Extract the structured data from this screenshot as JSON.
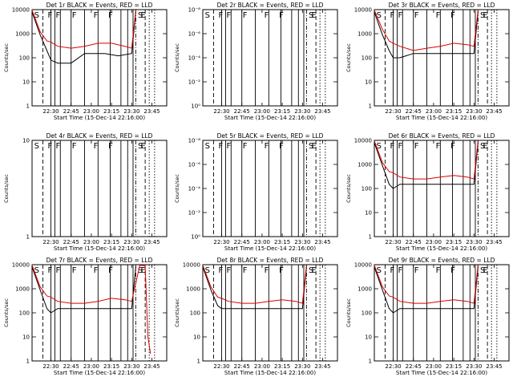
{
  "chart_data": [
    {
      "type": "line",
      "title": "Det 1r BLACK = Events, RED = LLD",
      "xlabel": "Start Time (15-Dec-14 22:16:00)",
      "ylabel": "Counts/sec",
      "yscale": "log",
      "ytick_labels": [
        "1",
        "10",
        "100",
        "1000",
        "10000"
      ],
      "xtick_labels": [
        "22:30",
        "22:45",
        "23:00",
        "23:15",
        "23:30",
        "23:45"
      ],
      "xlim": [
        "22:16",
        "23:56"
      ],
      "series": [
        {
          "name": "Events",
          "color": "#000000",
          "x": [
            "22:16",
            "22:22",
            "22:27",
            "22:30",
            "22:35",
            "22:45",
            "22:55",
            "23:00",
            "23:10",
            "23:20",
            "23:30",
            "23:33"
          ],
          "y": [
            8000,
            900,
            200,
            80,
            60,
            60,
            150,
            150,
            150,
            120,
            150,
            8000
          ]
        },
        {
          "name": "LLD",
          "color": "#dd0000",
          "x": [
            "22:16",
            "22:22",
            "22:27",
            "22:30",
            "22:35",
            "22:45",
            "22:55",
            "23:05",
            "23:15",
            "23:25",
            "23:30",
            "23:33"
          ],
          "y": [
            9500,
            1200,
            500,
            450,
            300,
            250,
            300,
            400,
            400,
            300,
            250,
            9500
          ]
        }
      ]
    },
    {
      "type": "line",
      "title": "Det 2r BLACK = Events, RED = LLD",
      "xlabel": "Start Time (15-Dec-14 22:16:00)",
      "ylabel": "Counts/sec",
      "yscale": "log",
      "ytick_labels": [
        "10⁰",
        "10⁻²",
        "10⁻⁴",
        "10⁻⁶",
        "10⁻⁸"
      ],
      "xtick_labels": [
        "22:30",
        "22:45",
        "23:00",
        "23:15",
        "23:30",
        "23:45"
      ],
      "xlim": [
        "22:16",
        "23:56"
      ],
      "series": []
    },
    {
      "type": "line",
      "title": "Det 3r BLACK = Events, RED = LLD",
      "xlabel": "Start Time (15-Dec-14 22:16:00)",
      "ylabel": "Counts/sec",
      "yscale": "log",
      "ytick_labels": [
        "1",
        "10",
        "100",
        "1000",
        "10000"
      ],
      "xtick_labels": [
        "22:30",
        "22:45",
        "23:00",
        "23:15",
        "23:30",
        "23:45"
      ],
      "xlim": [
        "22:16",
        "23:56"
      ],
      "series": [
        {
          "name": "Events",
          "color": "#000000",
          "x": [
            "22:16",
            "22:22",
            "22:27",
            "22:30",
            "22:35",
            "22:45",
            "22:55",
            "23:00",
            "23:10",
            "23:20",
            "23:30",
            "23:33"
          ],
          "y": [
            8000,
            900,
            200,
            100,
            100,
            150,
            150,
            150,
            150,
            150,
            150,
            8000
          ]
        },
        {
          "name": "LLD",
          "color": "#dd0000",
          "x": [
            "22:16",
            "22:22",
            "22:27",
            "22:30",
            "22:35",
            "22:45",
            "22:55",
            "23:05",
            "23:15",
            "23:25",
            "23:30",
            "23:33"
          ],
          "y": [
            9500,
            1500,
            500,
            400,
            300,
            200,
            250,
            300,
            400,
            350,
            300,
            9500
          ]
        }
      ]
    },
    {
      "type": "line",
      "title": "Det 4r BLACK = Events, RED = LLD",
      "xlabel": "Start Time (15-Dec-14 22:16:00)",
      "ylabel": "Counts/sec",
      "yscale": "log",
      "ytick_labels": [
        "1",
        "10"
      ],
      "xtick_labels": [
        "22:30",
        "22:45",
        "23:00",
        "23:15",
        "23:30",
        "23:45"
      ],
      "xlim": [
        "22:16",
        "23:56"
      ],
      "series": []
    },
    {
      "type": "line",
      "title": "Det 5r BLACK = Events, RED = LLD",
      "xlabel": "Start Time (15-Dec-14 22:16:00)",
      "ylabel": "Counts/sec",
      "yscale": "log",
      "ytick_labels": [
        "10⁰",
        "10⁻²",
        "10⁻⁴",
        "10⁻⁶",
        "10⁻⁸"
      ],
      "xtick_labels": [
        "22:30",
        "22:45",
        "23:00",
        "23:15",
        "23:30",
        "23:45"
      ],
      "xlim": [
        "22:16",
        "23:56"
      ],
      "series": []
    },
    {
      "type": "line",
      "title": "Det 6r BLACK = Events, RED = LLD",
      "xlabel": "Start Time (15-Dec-14 22:16:00)",
      "ylabel": "Counts/sec",
      "yscale": "log",
      "ytick_labels": [
        "1",
        "10",
        "100",
        "1000",
        "10000"
      ],
      "xtick_labels": [
        "22:30",
        "22:45",
        "23:00",
        "23:15",
        "23:30",
        "23:45"
      ],
      "xlim": [
        "22:16",
        "23:56"
      ],
      "series": [
        {
          "name": "Events",
          "color": "#000000",
          "x": [
            "22:16",
            "22:22",
            "22:27",
            "22:30",
            "22:35",
            "22:45",
            "22:55",
            "23:00",
            "23:10",
            "23:20",
            "23:30",
            "23:33"
          ],
          "y": [
            8000,
            900,
            150,
            100,
            150,
            150,
            150,
            150,
            150,
            150,
            150,
            8000
          ]
        },
        {
          "name": "LLD",
          "color": "#dd0000",
          "x": [
            "22:16",
            "22:22",
            "22:27",
            "22:30",
            "22:35",
            "22:45",
            "22:55",
            "23:05",
            "23:15",
            "23:25",
            "23:30",
            "23:33"
          ],
          "y": [
            9500,
            1200,
            500,
            450,
            300,
            250,
            250,
            300,
            350,
            300,
            250,
            9500
          ]
        }
      ]
    },
    {
      "type": "line",
      "title": "Det 7r BLACK = Events, RED = LLD",
      "xlabel": "Start Time (15-Dec-14 22:16:00)",
      "ylabel": "Counts/sec",
      "yscale": "log",
      "ytick_labels": [
        "1",
        "10",
        "100",
        "1000",
        "10000"
      ],
      "xtick_labels": [
        "22:30",
        "22:45",
        "23:00",
        "23:15",
        "23:30",
        "23:45"
      ],
      "xlim": [
        "22:16",
        "23:56"
      ],
      "series": [
        {
          "name": "Events",
          "color": "#000000",
          "x": [
            "22:16",
            "22:22",
            "22:27",
            "22:30",
            "22:35",
            "22:45",
            "22:55",
            "23:00",
            "23:10",
            "23:20",
            "23:30",
            "23:33"
          ],
          "y": [
            8000,
            900,
            150,
            100,
            150,
            150,
            150,
            150,
            150,
            150,
            150,
            8000
          ]
        },
        {
          "name": "LLD",
          "color": "#dd0000",
          "x": [
            "22:16",
            "22:22",
            "22:27",
            "22:30",
            "22:35",
            "22:45",
            "22:55",
            "23:05",
            "23:15",
            "23:25",
            "23:30",
            "23:36",
            "23:40",
            "23:42",
            "23:44"
          ],
          "y": [
            9500,
            1200,
            500,
            450,
            300,
            250,
            250,
            300,
            400,
            350,
            300,
            9500,
            9000,
            10,
            2
          ]
        }
      ]
    },
    {
      "type": "line",
      "title": "Det 8r BLACK = Events, RED = LLD",
      "xlabel": "Start Time (15-Dec-14 22:16:00)",
      "ylabel": "Counts/sec",
      "yscale": "log",
      "ytick_labels": [
        "1",
        "10",
        "100",
        "1000",
        "10000"
      ],
      "xtick_labels": [
        "22:30",
        "22:45",
        "23:00",
        "23:15",
        "23:30",
        "23:45"
      ],
      "xlim": [
        "22:16",
        "23:56"
      ],
      "series": [
        {
          "name": "Events",
          "color": "#000000",
          "x": [
            "22:16",
            "22:22",
            "22:27",
            "22:30",
            "22:35",
            "22:45",
            "22:55",
            "23:00",
            "23:10",
            "23:20",
            "23:30",
            "23:33"
          ],
          "y": [
            8000,
            900,
            200,
            150,
            150,
            150,
            150,
            150,
            150,
            150,
            150,
            8000
          ]
        },
        {
          "name": "LLD",
          "color": "#dd0000",
          "x": [
            "22:16",
            "22:22",
            "22:27",
            "22:30",
            "22:35",
            "22:45",
            "22:55",
            "23:05",
            "23:15",
            "23:25",
            "23:30",
            "23:33"
          ],
          "y": [
            9500,
            1200,
            450,
            400,
            300,
            250,
            250,
            300,
            350,
            300,
            250,
            9500
          ]
        }
      ]
    },
    {
      "type": "line",
      "title": "Det 9r BLACK = Events, RED = LLD",
      "xlabel": "Start Time (15-Dec-14 22:16:00)",
      "ylabel": "Counts/sec",
      "yscale": "log",
      "ytick_labels": [
        "1",
        "10",
        "100",
        "1000",
        "10000"
      ],
      "xtick_labels": [
        "22:30",
        "22:45",
        "23:00",
        "23:15",
        "23:30",
        "23:45"
      ],
      "xlim": [
        "22:16",
        "23:56"
      ],
      "series": [
        {
          "name": "Events",
          "color": "#000000",
          "x": [
            "22:16",
            "22:22",
            "22:27",
            "22:30",
            "22:35",
            "22:45",
            "22:55",
            "23:00",
            "23:10",
            "23:20",
            "23:30",
            "23:33"
          ],
          "y": [
            8000,
            900,
            150,
            100,
            150,
            150,
            150,
            150,
            150,
            150,
            150,
            8000
          ]
        },
        {
          "name": "LLD",
          "color": "#dd0000",
          "x": [
            "22:16",
            "22:22",
            "22:27",
            "22:30",
            "22:35",
            "22:45",
            "22:55",
            "23:05",
            "23:15",
            "23:25",
            "23:30",
            "23:33"
          ],
          "y": [
            9500,
            1200,
            500,
            450,
            300,
            250,
            250,
            300,
            350,
            300,
            250,
            9500
          ]
        }
      ]
    }
  ],
  "event_lines": {
    "solid": [
      "22:30",
      "22:33",
      "22:37",
      "22:45",
      "22:55",
      "23:05",
      "23:14",
      "23:22",
      "23:27",
      "23:31"
    ],
    "dashed": [
      "22:24",
      "23:40"
    ],
    "dashdot": [
      "23:33"
    ],
    "dotted": [
      "23:43",
      "23:47"
    ]
  },
  "markers": [
    {
      "time": "22:17",
      "label": "S"
    },
    {
      "time": "22:27",
      "label": "F"
    },
    {
      "time": "22:33",
      "label": "F"
    },
    {
      "time": "22:45",
      "label": "F"
    },
    {
      "time": "23:01",
      "label": "F"
    },
    {
      "time": "23:12",
      "label": "F"
    },
    {
      "time": "23:34",
      "label": "S"
    },
    {
      "time": "23:36",
      "label": "E"
    }
  ]
}
